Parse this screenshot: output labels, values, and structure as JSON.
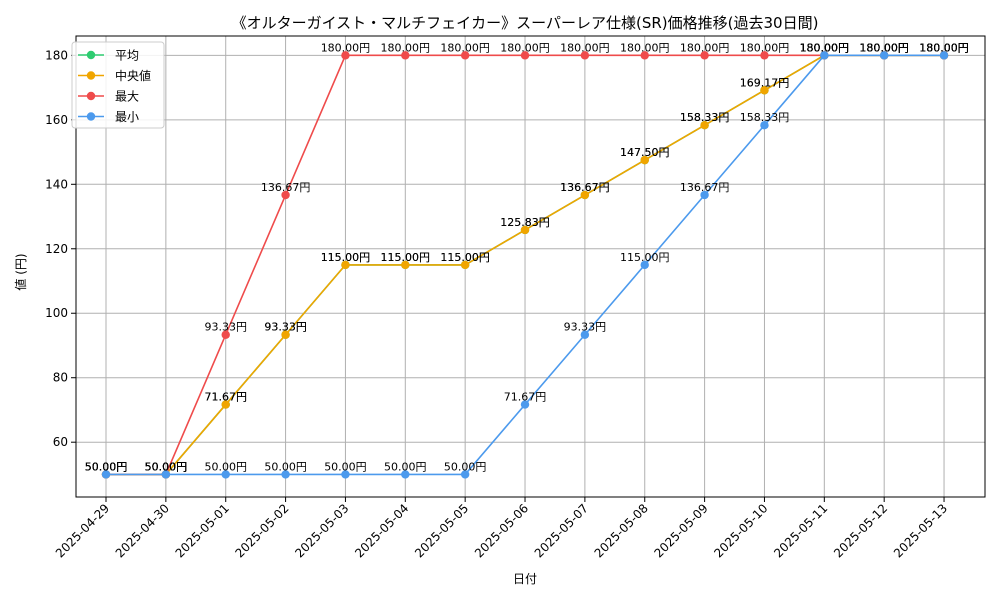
{
  "chart_data": {
    "type": "line",
    "title": "《オルターガイスト・マルチフェイカー》スーパーレア仕様(SR)価格推移(過去30日間)",
    "xlabel": "日付",
    "ylabel": "値 (円)",
    "ylim": [
      43,
      186
    ],
    "yticks": [
      60,
      80,
      100,
      120,
      140,
      160,
      180
    ],
    "grid": true,
    "legend_position": "top-left",
    "value_suffix": "円",
    "categories": [
      "2025-04-29",
      "2025-04-30",
      "2025-05-01",
      "2025-05-02",
      "2025-05-03",
      "2025-05-04",
      "2025-05-05",
      "2025-05-06",
      "2025-05-07",
      "2025-05-08",
      "2025-05-09",
      "2025-05-10",
      "2025-05-11",
      "2025-05-12",
      "2025-05-13"
    ],
    "series": [
      {
        "name": "平均",
        "color": "#2ecc71",
        "values": [
          50.0,
          50.0,
          71.67,
          93.33,
          115.0,
          115.0,
          115.0,
          125.83,
          136.67,
          147.5,
          158.33,
          169.17,
          180.0,
          180.0,
          180.0
        ]
      },
      {
        "name": "中央値",
        "color": "#f0a500",
        "values": [
          50.0,
          50.0,
          71.67,
          93.33,
          115.0,
          115.0,
          115.0,
          125.83,
          136.67,
          147.5,
          158.33,
          169.17,
          180.0,
          180.0,
          180.0
        ]
      },
      {
        "name": "最大",
        "color": "#ef4b4b",
        "values": [
          50.0,
          50.0,
          93.33,
          136.67,
          180.0,
          180.0,
          180.0,
          180.0,
          180.0,
          180.0,
          180.0,
          180.0,
          180.0,
          180.0,
          180.0
        ]
      },
      {
        "name": "最小",
        "color": "#4c9aed",
        "values": [
          50.0,
          50.0,
          50.0,
          50.0,
          50.0,
          50.0,
          50.0,
          71.67,
          93.33,
          115.0,
          136.67,
          158.33,
          180.0,
          180.0,
          180.0
        ]
      }
    ]
  }
}
